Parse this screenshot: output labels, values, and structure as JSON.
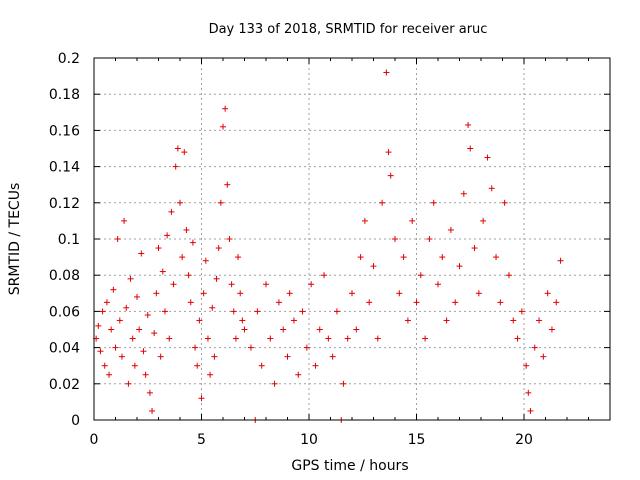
{
  "chart_data": {
    "type": "scatter",
    "title": "Day 133 of 2018, SRMTID for receiver aruc",
    "xlabel": "GPS time / hours",
    "ylabel": "SRMTID / TECUs",
    "xlim": [
      0,
      24
    ],
    "ylim": [
      0,
      0.2
    ],
    "xticks": [
      0,
      5,
      10,
      15,
      20
    ],
    "xtick_labels": [
      "0",
      "5",
      "10",
      "15",
      "20"
    ],
    "yticks": [
      0,
      0.02,
      0.04,
      0.06,
      0.08,
      0.1,
      0.12,
      0.14,
      0.16,
      0.18,
      0.2
    ],
    "ytick_labels": [
      "0",
      "0.02",
      "0.04",
      "0.06",
      "0.08",
      "0.1",
      "0.12",
      "0.14",
      "0.16",
      "0.18",
      "0.2"
    ],
    "grid": true,
    "marker": "+",
    "marker_color": "#e00000",
    "series": [
      {
        "name": "SRMTID",
        "points": [
          [
            0.1,
            0.045
          ],
          [
            0.2,
            0.052
          ],
          [
            0.3,
            0.038
          ],
          [
            0.4,
            0.06
          ],
          [
            0.5,
            0.03
          ],
          [
            0.6,
            0.065
          ],
          [
            0.7,
            0.025
          ],
          [
            0.8,
            0.05
          ],
          [
            0.9,
            0.072
          ],
          [
            1.0,
            0.04
          ],
          [
            1.1,
            0.1
          ],
          [
            1.2,
            0.055
          ],
          [
            1.3,
            0.035
          ],
          [
            1.4,
            0.11
          ],
          [
            1.5,
            0.062
          ],
          [
            1.6,
            0.02
          ],
          [
            1.7,
            0.078
          ],
          [
            1.8,
            0.045
          ],
          [
            1.9,
            0.03
          ],
          [
            2.0,
            0.068
          ],
          [
            2.1,
            0.05
          ],
          [
            2.2,
            0.092
          ],
          [
            2.3,
            0.038
          ],
          [
            2.4,
            0.025
          ],
          [
            2.5,
            0.058
          ],
          [
            2.6,
            0.015
          ],
          [
            2.7,
            0.005
          ],
          [
            2.8,
            0.048
          ],
          [
            2.9,
            0.07
          ],
          [
            3.0,
            0.095
          ],
          [
            3.1,
            0.035
          ],
          [
            3.2,
            0.082
          ],
          [
            3.3,
            0.06
          ],
          [
            3.4,
            0.102
          ],
          [
            3.5,
            0.045
          ],
          [
            3.6,
            0.115
          ],
          [
            3.7,
            0.075
          ],
          [
            3.8,
            0.14
          ],
          [
            3.9,
            0.15
          ],
          [
            4.0,
            0.12
          ],
          [
            4.1,
            0.09
          ],
          [
            4.2,
            0.148
          ],
          [
            4.3,
            0.105
          ],
          [
            4.4,
            0.08
          ],
          [
            4.5,
            0.065
          ],
          [
            4.6,
            0.098
          ],
          [
            4.7,
            0.04
          ],
          [
            4.8,
            0.03
          ],
          [
            4.9,
            0.055
          ],
          [
            5.0,
            0.012
          ],
          [
            5.1,
            0.07
          ],
          [
            5.2,
            0.088
          ],
          [
            5.3,
            0.045
          ],
          [
            5.4,
            0.025
          ],
          [
            5.5,
            0.062
          ],
          [
            5.6,
            0.035
          ],
          [
            5.7,
            0.078
          ],
          [
            5.8,
            0.095
          ],
          [
            5.9,
            0.12
          ],
          [
            6.0,
            0.162
          ],
          [
            6.1,
            0.172
          ],
          [
            6.2,
            0.13
          ],
          [
            6.3,
            0.1
          ],
          [
            6.4,
            0.075
          ],
          [
            6.5,
            0.06
          ],
          [
            6.6,
            0.045
          ],
          [
            6.7,
            0.09
          ],
          [
            6.8,
            0.07
          ],
          [
            6.9,
            0.055
          ],
          [
            7.0,
            0.05
          ],
          [
            7.3,
            0.04
          ],
          [
            7.5,
            0.0
          ],
          [
            7.6,
            0.06
          ],
          [
            7.8,
            0.03
          ],
          [
            8.0,
            0.075
          ],
          [
            8.2,
            0.045
          ],
          [
            8.4,
            0.02
          ],
          [
            8.6,
            0.065
          ],
          [
            8.8,
            0.05
          ],
          [
            9.0,
            0.035
          ],
          [
            9.1,
            0.07
          ],
          [
            9.3,
            0.055
          ],
          [
            9.5,
            0.025
          ],
          [
            9.7,
            0.06
          ],
          [
            9.9,
            0.04
          ],
          [
            10.1,
            0.075
          ],
          [
            10.3,
            0.03
          ],
          [
            10.5,
            0.05
          ],
          [
            10.7,
            0.08
          ],
          [
            10.9,
            0.045
          ],
          [
            11.1,
            0.035
          ],
          [
            11.3,
            0.06
          ],
          [
            11.5,
            0.0
          ],
          [
            11.6,
            0.02
          ],
          [
            11.8,
            0.045
          ],
          [
            12.0,
            0.07
          ],
          [
            12.2,
            0.05
          ],
          [
            12.4,
            0.09
          ],
          [
            12.6,
            0.11
          ],
          [
            12.8,
            0.065
          ],
          [
            13.0,
            0.085
          ],
          [
            13.2,
            0.045
          ],
          [
            13.4,
            0.12
          ],
          [
            13.6,
            0.192
          ],
          [
            13.7,
            0.148
          ],
          [
            13.8,
            0.135
          ],
          [
            14.0,
            0.1
          ],
          [
            14.2,
            0.07
          ],
          [
            14.4,
            0.09
          ],
          [
            14.6,
            0.055
          ],
          [
            14.8,
            0.11
          ],
          [
            15.0,
            0.065
          ],
          [
            15.2,
            0.08
          ],
          [
            15.4,
            0.045
          ],
          [
            15.6,
            0.1
          ],
          [
            15.8,
            0.12
          ],
          [
            16.0,
            0.075
          ],
          [
            16.2,
            0.09
          ],
          [
            16.4,
            0.055
          ],
          [
            16.6,
            0.105
          ],
          [
            16.8,
            0.065
          ],
          [
            17.0,
            0.085
          ],
          [
            17.2,
            0.125
          ],
          [
            17.4,
            0.163
          ],
          [
            17.5,
            0.15
          ],
          [
            17.7,
            0.095
          ],
          [
            17.9,
            0.07
          ],
          [
            18.1,
            0.11
          ],
          [
            18.3,
            0.145
          ],
          [
            18.5,
            0.128
          ],
          [
            18.7,
            0.09
          ],
          [
            18.9,
            0.065
          ],
          [
            19.1,
            0.12
          ],
          [
            19.3,
            0.08
          ],
          [
            19.5,
            0.055
          ],
          [
            19.7,
            0.045
          ],
          [
            19.9,
            0.06
          ],
          [
            20.1,
            0.03
          ],
          [
            20.2,
            0.015
          ],
          [
            20.3,
            0.005
          ],
          [
            20.5,
            0.04
          ],
          [
            20.7,
            0.055
          ],
          [
            20.9,
            0.035
          ],
          [
            21.1,
            0.07
          ],
          [
            21.3,
            0.05
          ],
          [
            21.5,
            0.065
          ],
          [
            21.7,
            0.088
          ]
        ]
      }
    ]
  }
}
